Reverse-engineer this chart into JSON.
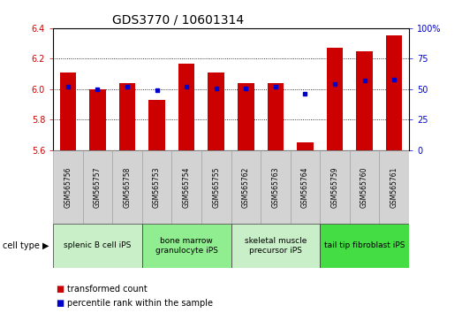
{
  "title": "GDS3770 / 10601314",
  "samples": [
    "GSM565756",
    "GSM565757",
    "GSM565758",
    "GSM565753",
    "GSM565754",
    "GSM565755",
    "GSM565762",
    "GSM565763",
    "GSM565764",
    "GSM565759",
    "GSM565760",
    "GSM565761"
  ],
  "transformed_count": [
    6.11,
    6.0,
    6.04,
    5.93,
    6.17,
    6.11,
    6.04,
    6.04,
    5.65,
    6.27,
    6.25,
    6.35
  ],
  "percentile_rank": [
    52,
    50,
    52,
    49,
    52,
    51,
    51,
    52,
    46,
    54,
    57,
    58
  ],
  "cell_types": [
    {
      "label": "splenic B cell iPS",
      "start": 0,
      "end": 3,
      "color": "#c8efc8"
    },
    {
      "label": "bone marrow\ngranulocyte iPS",
      "start": 3,
      "end": 6,
      "color": "#90ee90"
    },
    {
      "label": "skeletal muscle\nprecursor iPS",
      "start": 6,
      "end": 9,
      "color": "#c8efc8"
    },
    {
      "label": "tail tip fibroblast iPS",
      "start": 9,
      "end": 12,
      "color": "#44dd44"
    }
  ],
  "ylim_left": [
    5.6,
    6.4
  ],
  "ylim_right": [
    0,
    100
  ],
  "yticks_left": [
    5.6,
    5.8,
    6.0,
    6.2,
    6.4
  ],
  "yticks_right": [
    0,
    25,
    50,
    75,
    100
  ],
  "bar_color": "#cc0000",
  "dot_color": "#0000cc",
  "bar_width": 0.55,
  "bg_color": "#ffffff",
  "tick_color_left": "#cc0000",
  "tick_color_right": "#0000cc",
  "title_fontsize": 10,
  "tick_fontsize": 7,
  "label_fontsize": 7,
  "legend_fontsize": 7,
  "sample_box_color": "#d3d3d3",
  "sample_box_edge": "#999999"
}
